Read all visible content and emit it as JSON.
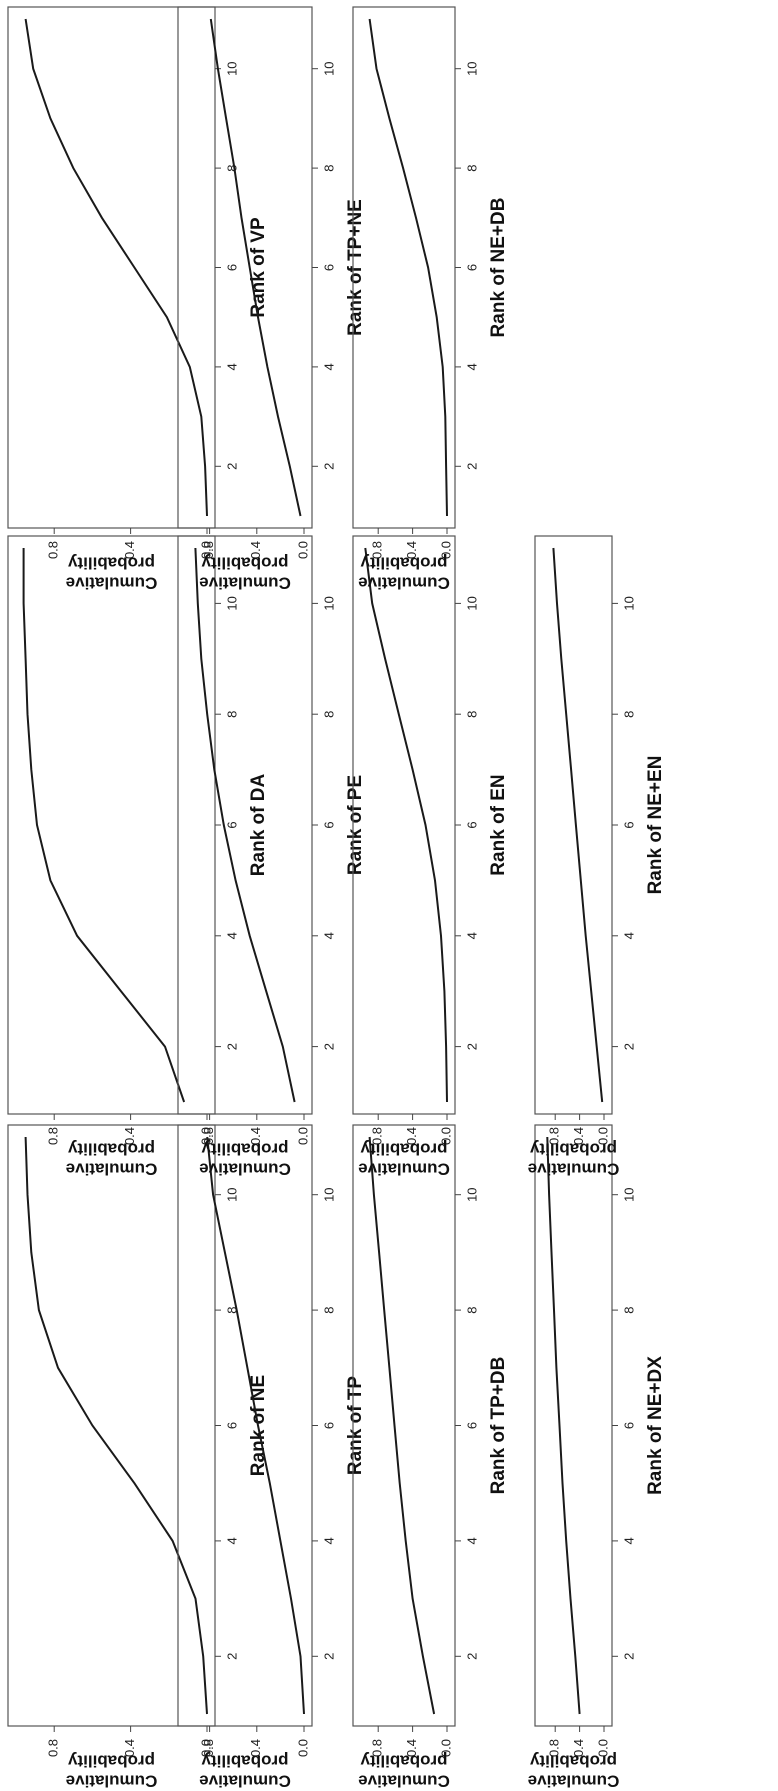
{
  "chart_data": [
    {
      "type": "line",
      "xlabel": "Rank of NE",
      "ylabel": [
        "Cumulative",
        "probability"
      ],
      "xlim": [
        1,
        11
      ],
      "ylim": [
        0,
        1
      ],
      "xticks": [
        "2",
        "4",
        "6",
        "8",
        "10"
      ],
      "yticks": [
        "0.0",
        "0.4",
        "0.8"
      ],
      "x": [
        1,
        2,
        3,
        4,
        5,
        6,
        7,
        8,
        9,
        10,
        11
      ],
      "y": [
        0.0,
        0.02,
        0.06,
        0.18,
        0.38,
        0.6,
        0.78,
        0.88,
        0.92,
        0.94,
        0.95
      ]
    },
    {
      "type": "line",
      "xlabel": "Rank of DA",
      "ylabel": [
        "Cumulative",
        "probability"
      ],
      "xlim": [
        1,
        11
      ],
      "ylim": [
        0,
        1
      ],
      "xticks": [
        "2",
        "4",
        "6",
        "8",
        "10"
      ],
      "yticks": [
        "0.0",
        "0.4",
        "0.8"
      ],
      "x": [
        1,
        2,
        3,
        4,
        5,
        6,
        7,
        8,
        9,
        10,
        11
      ],
      "y": [
        0.12,
        0.22,
        0.45,
        0.68,
        0.82,
        0.89,
        0.92,
        0.94,
        0.95,
        0.96,
        0.96
      ]
    },
    {
      "type": "line",
      "xlabel": "Rank of VP",
      "ylabel": [
        "Cumulative",
        "probability"
      ],
      "xlim": [
        1,
        11
      ],
      "ylim": [
        0,
        1
      ],
      "xticks": [
        "2",
        "4",
        "6",
        "8",
        "10"
      ],
      "yticks": [
        "0.0",
        "0.4",
        "0.8"
      ],
      "x": [
        1,
        2,
        3,
        4,
        5,
        6,
        7,
        8,
        9,
        10,
        11
      ],
      "y": [
        0.0,
        0.01,
        0.03,
        0.09,
        0.21,
        0.38,
        0.55,
        0.7,
        0.82,
        0.91,
        0.95
      ]
    },
    {
      "type": "line",
      "xlabel": "Rank of TP",
      "ylabel": [
        "Cumulative",
        "probability"
      ],
      "xlim": [
        1,
        11
      ],
      "ylim": [
        0,
        1
      ],
      "xticks": [
        "2",
        "4",
        "6",
        "8",
        "10"
      ],
      "yticks": [
        "0.0",
        "0.4",
        "0.8"
      ],
      "x": [
        1,
        2,
        3,
        4,
        5,
        6,
        7,
        8,
        9,
        10,
        11
      ],
      "y": [
        0.0,
        0.03,
        0.11,
        0.2,
        0.29,
        0.39,
        0.48,
        0.57,
        0.67,
        0.77,
        0.82
      ]
    },
    {
      "type": "line",
      "xlabel": "Rank of PE",
      "ylabel": [
        "Cumulative",
        "probability"
      ],
      "xlim": [
        1,
        11
      ],
      "ylim": [
        0,
        1
      ],
      "xticks": [
        "2",
        "4",
        "6",
        "8",
        "10"
      ],
      "yticks": [
        "0.0",
        "0.4",
        "0.8"
      ],
      "x": [
        1,
        2,
        3,
        4,
        5,
        6,
        7,
        8,
        9,
        10,
        11
      ],
      "y": [
        0.08,
        0.18,
        0.32,
        0.46,
        0.58,
        0.68,
        0.76,
        0.82,
        0.87,
        0.9,
        0.92
      ]
    },
    {
      "type": "line",
      "xlabel": "Rank of TP+NE",
      "ylabel": [
        "Cumulative",
        "probability"
      ],
      "xlim": [
        1,
        11
      ],
      "ylim": [
        0,
        1
      ],
      "xticks": [
        "2",
        "4",
        "6",
        "8",
        "10"
      ],
      "yticks": [
        "0.0",
        "0.4",
        "0.8"
      ],
      "x": [
        1,
        2,
        3,
        4,
        5,
        6,
        7,
        8,
        9,
        10,
        11
      ],
      "y": [
        0.03,
        0.12,
        0.22,
        0.31,
        0.39,
        0.46,
        0.53,
        0.59,
        0.66,
        0.73,
        0.79
      ]
    },
    {
      "type": "line",
      "xlabel": "Rank of TP+DB",
      "ylabel": [
        "Cumulative",
        "probability"
      ],
      "xlim": [
        1,
        11
      ],
      "ylim": [
        0,
        1
      ],
      "xticks": [
        "2",
        "4",
        "6",
        "8",
        "10"
      ],
      "yticks": [
        "0.0",
        "0.4",
        "0.8"
      ],
      "x": [
        1,
        2,
        3,
        4,
        5,
        6,
        7,
        8,
        9,
        10,
        11
      ],
      "y": [
        0.15,
        0.28,
        0.4,
        0.48,
        0.55,
        0.61,
        0.67,
        0.73,
        0.79,
        0.85,
        0.9
      ]
    },
    {
      "type": "line",
      "xlabel": "Rank of EN",
      "ylabel": [
        "Cumulative",
        "probability"
      ],
      "xlim": [
        1,
        11
      ],
      "ylim": [
        0,
        1
      ],
      "xticks": [
        "2",
        "4",
        "6",
        "8",
        "10"
      ],
      "yticks": [
        "0.0",
        "0.4",
        "0.8"
      ],
      "x": [
        1,
        2,
        3,
        4,
        5,
        6,
        7,
        8,
        9,
        10,
        11
      ],
      "y": [
        0.0,
        0.01,
        0.03,
        0.07,
        0.14,
        0.25,
        0.4,
        0.56,
        0.72,
        0.87,
        0.95
      ]
    },
    {
      "type": "line",
      "xlabel": "Rank of NE+DB",
      "ylabel": [
        "Cumulative",
        "probability"
      ],
      "xlim": [
        1,
        11
      ],
      "ylim": [
        0,
        1
      ],
      "xticks": [
        "2",
        "4",
        "6",
        "8",
        "10"
      ],
      "yticks": [
        "0.0",
        "0.4",
        "0.8"
      ],
      "x": [
        1,
        2,
        3,
        4,
        5,
        6,
        7,
        8,
        9,
        10,
        11
      ],
      "y": [
        0.0,
        0.01,
        0.02,
        0.05,
        0.12,
        0.22,
        0.36,
        0.51,
        0.67,
        0.82,
        0.9
      ]
    },
    {
      "type": "line",
      "xlabel": "Rank of NE+DX",
      "ylabel": [
        "Cumulative",
        "probability"
      ],
      "xlim": [
        1,
        11
      ],
      "ylim": [
        0,
        1
      ],
      "xticks": [
        "2",
        "4",
        "6",
        "8",
        "10"
      ],
      "yticks": [
        "0.0",
        "0.4",
        "0.8"
      ],
      "x": [
        1,
        2,
        3,
        4,
        5,
        6,
        7,
        8,
        9,
        10,
        11
      ],
      "y": [
        0.4,
        0.47,
        0.55,
        0.62,
        0.68,
        0.73,
        0.78,
        0.82,
        0.86,
        0.9,
        0.93
      ]
    },
    {
      "type": "line",
      "xlabel": "Rank of NE+EN",
      "ylabel": [
        "Cumulative",
        "probability"
      ],
      "xlim": [
        1,
        11
      ],
      "ylim": [
        0,
        1
      ],
      "xticks": [
        "2",
        "4",
        "6",
        "8",
        "10"
      ],
      "yticks": [
        "0.0",
        "0.4",
        "0.8"
      ],
      "x": [
        1,
        2,
        3,
        4,
        5,
        6,
        7,
        8,
        9,
        10,
        11
      ],
      "y": [
        0.03,
        0.12,
        0.21,
        0.3,
        0.38,
        0.46,
        0.54,
        0.62,
        0.7,
        0.77,
        0.83
      ]
    }
  ]
}
